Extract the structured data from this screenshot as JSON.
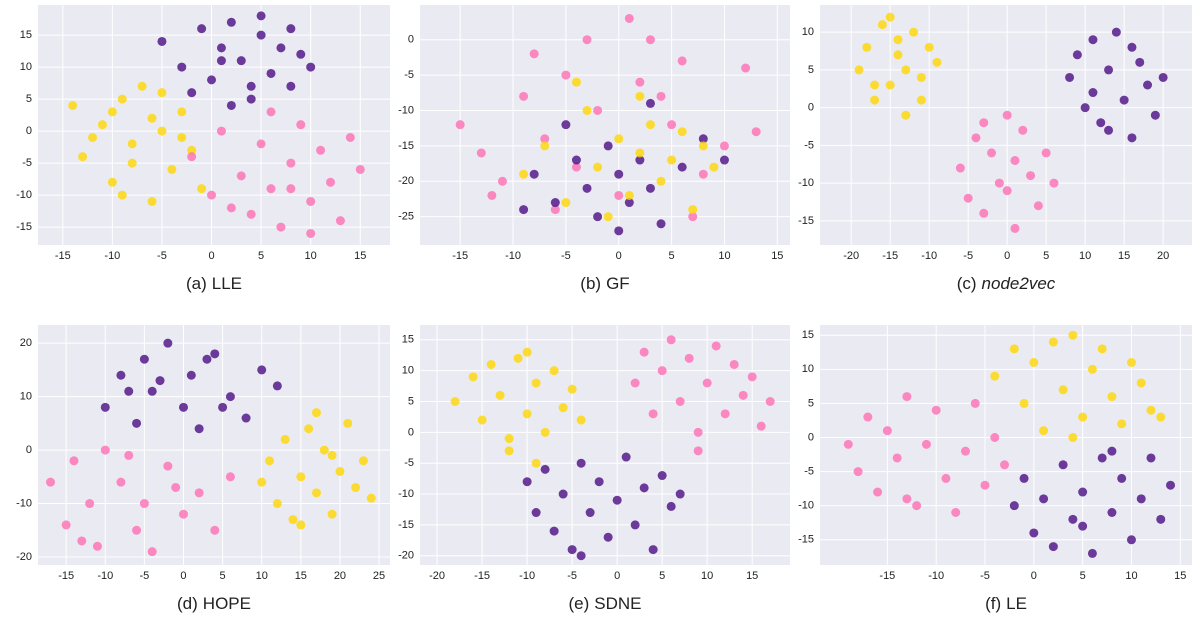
{
  "chart_data": [
    {
      "type": "scatter",
      "panel": "(a)",
      "title": "LLE",
      "title_italic": false,
      "xlim": [
        -17.5,
        18
      ],
      "ylim": [
        -17.8,
        19.7
      ],
      "xticks": [
        -15,
        -10,
        -5,
        0,
        5,
        10,
        15
      ],
      "yticks": [
        -15,
        -10,
        -5,
        0,
        5,
        10,
        15
      ],
      "grid": true,
      "series": [
        {
          "color": "#4b0c82",
          "x": [
            -5,
            -3,
            -1,
            0,
            1,
            2,
            3,
            4,
            5,
            6,
            7,
            8,
            9,
            10,
            -2,
            2,
            5,
            8,
            1,
            4
          ],
          "y": [
            14,
            10,
            16,
            8,
            13,
            17,
            11,
            5,
            15,
            9,
            13,
            7,
            12,
            10,
            6,
            4,
            18,
            16,
            11,
            7
          ]
        },
        {
          "color": "#ffd700",
          "x": [
            -14,
            -13,
            -11,
            -10,
            -9,
            -8,
            -7,
            -6,
            -5,
            -4,
            -3,
            -2,
            -1,
            -12,
            -8,
            -6,
            -3,
            -10,
            -9,
            -5
          ],
          "y": [
            4,
            -4,
            1,
            -8,
            5,
            -2,
            7,
            -11,
            0,
            -6,
            3,
            -3,
            -9,
            -1,
            -5,
            2,
            -1,
            3,
            -10,
            6
          ]
        },
        {
          "color": "#ff6eb4",
          "x": [
            -2,
            0,
            1,
            3,
            4,
            5,
            6,
            7,
            8,
            9,
            10,
            11,
            12,
            13,
            14,
            15,
            2,
            6,
            10,
            8
          ],
          "y": [
            -4,
            -10,
            0,
            -7,
            -13,
            -2,
            -9,
            -15,
            -5,
            1,
            -11,
            -3,
            -8,
            -14,
            -1,
            -6,
            -12,
            3,
            -16,
            -9
          ]
        }
      ]
    },
    {
      "type": "scatter",
      "panel": "(b)",
      "title": "GF",
      "title_italic": false,
      "xlim": [
        -18.8,
        16.2
      ],
      "ylim": [
        -29,
        4.9
      ],
      "xticks": [
        -15,
        -10,
        -5,
        0,
        5,
        10,
        15
      ],
      "yticks": [
        -25,
        -20,
        -15,
        -10,
        -5,
        0
      ],
      "grid": true,
      "series": [
        {
          "color": "#ff6eb4",
          "x": [
            -15,
            -13,
            -11,
            -9,
            -7,
            -5,
            -4,
            -3,
            -2,
            0,
            1,
            2,
            3,
            5,
            6,
            8,
            10,
            12,
            -12,
            -6,
            4,
            7,
            -8,
            13
          ],
          "y": [
            -12,
            -16,
            -20,
            -8,
            -14,
            -5,
            -18,
            0,
            -10,
            -22,
            3,
            -6,
            0,
            -12,
            -3,
            -19,
            -15,
            -4,
            -22,
            -24,
            -8,
            -25,
            -2,
            -13
          ]
        },
        {
          "color": "#4b0c82",
          "x": [
            -8,
            -6,
            -4,
            -3,
            -2,
            -1,
            0,
            1,
            2,
            3,
            4,
            6,
            8,
            -5,
            0,
            3,
            -9,
            10
          ],
          "y": [
            -19,
            -23,
            -17,
            -21,
            -25,
            -15,
            -19,
            -23,
            -17,
            -21,
            -26,
            -18,
            -14,
            -12,
            -27,
            -9,
            -24,
            -17
          ]
        },
        {
          "color": "#ffd700",
          "x": [
            -9,
            -7,
            -5,
            -3,
            -2,
            0,
            1,
            2,
            3,
            4,
            5,
            6,
            7,
            8,
            -4,
            2,
            9,
            -1
          ],
          "y": [
            -19,
            -15,
            -23,
            -10,
            -18,
            -14,
            -22,
            -16,
            -12,
            -20,
            -17,
            -13,
            -24,
            -15,
            -6,
            -8,
            -18,
            -25
          ]
        }
      ]
    },
    {
      "type": "scatter",
      "panel": "(c)",
      "title": "node2vec",
      "title_italic": true,
      "xlim": [
        -24,
        23.7
      ],
      "ylim": [
        -18.2,
        13.6
      ],
      "xticks": [
        -20,
        -15,
        -10,
        -5,
        0,
        5,
        10,
        15,
        20
      ],
      "yticks": [
        -15,
        -10,
        -5,
        0,
        5,
        10
      ],
      "grid": true,
      "series": [
        {
          "color": "#ffd700",
          "x": [
            -19,
            -18,
            -17,
            -16,
            -15,
            -14,
            -13,
            -12,
            -11,
            -10,
            -9,
            -15,
            -13,
            -17,
            -11,
            -14
          ],
          "y": [
            5,
            8,
            1,
            11,
            3,
            7,
            -1,
            10,
            4,
            8,
            6,
            12,
            5,
            3,
            1,
            9
          ]
        },
        {
          "color": "#4b0c82",
          "x": [
            8,
            9,
            10,
            11,
            12,
            13,
            14,
            15,
            16,
            17,
            18,
            19,
            20,
            13,
            16,
            11
          ],
          "y": [
            4,
            7,
            0,
            9,
            -2,
            5,
            10,
            1,
            -4,
            6,
            3,
            -1,
            4,
            -3,
            8,
            2
          ]
        },
        {
          "color": "#ff6eb4",
          "x": [
            -6,
            -5,
            -4,
            -3,
            -2,
            -1,
            0,
            1,
            2,
            3,
            4,
            5,
            6,
            -3,
            1,
            0
          ],
          "y": [
            -8,
            -12,
            -4,
            -14,
            -6,
            -10,
            -1,
            -16,
            -3,
            -9,
            -13,
            -6,
            -10,
            -2,
            -7,
            -11
          ]
        }
      ]
    },
    {
      "type": "scatter",
      "panel": "(d)",
      "title": "HOPE",
      "title_italic": false,
      "xlim": [
        -18.6,
        26.4
      ],
      "ylim": [
        -21.5,
        23.4
      ],
      "xticks": [
        -15,
        -10,
        -5,
        0,
        5,
        10,
        15,
        20,
        25
      ],
      "yticks": [
        -20,
        -10,
        0,
        10,
        20
      ],
      "grid": true,
      "series": [
        {
          "color": "#4b0c82",
          "x": [
            -10,
            -8,
            -6,
            -5,
            -4,
            -2,
            0,
            1,
            2,
            4,
            6,
            8,
            10,
            12,
            -3,
            3,
            -7,
            5
          ],
          "y": [
            8,
            14,
            5,
            17,
            11,
            20,
            8,
            14,
            4,
            18,
            10,
            6,
            15,
            12,
            13,
            17,
            11,
            8
          ]
        },
        {
          "color": "#ff6eb4",
          "x": [
            -17,
            -15,
            -14,
            -12,
            -11,
            -10,
            -8,
            -6,
            -5,
            -4,
            -2,
            0,
            2,
            4,
            6,
            -13,
            -7,
            -1
          ],
          "y": [
            -6,
            -14,
            -2,
            -10,
            -18,
            0,
            -6,
            -15,
            -10,
            -19,
            -3,
            -12,
            -8,
            -15,
            -5,
            -17,
            -1,
            -7
          ]
        },
        {
          "color": "#ffd700",
          "x": [
            10,
            11,
            12,
            13,
            14,
            15,
            16,
            17,
            18,
            19,
            20,
            21,
            22,
            23,
            24,
            17,
            15,
            19
          ],
          "y": [
            -6,
            -2,
            -10,
            2,
            -13,
            -5,
            4,
            -8,
            0,
            -12,
            -4,
            5,
            -7,
            -2,
            -9,
            7,
            -14,
            -1
          ]
        }
      ]
    },
    {
      "type": "scatter",
      "panel": "(e)",
      "title": "SDNE",
      "title_italic": false,
      "xlim": [
        -21.9,
        19.2
      ],
      "ylim": [
        -21.5,
        17.4
      ],
      "xticks": [
        -20,
        -15,
        -10,
        -5,
        0,
        5,
        10,
        15
      ],
      "yticks": [
        -20,
        -15,
        -10,
        -5,
        0,
        5,
        10,
        15
      ],
      "grid": true,
      "series": [
        {
          "color": "#ffd700",
          "x": [
            -18,
            -16,
            -15,
            -14,
            -13,
            -12,
            -11,
            -10,
            -9,
            -8,
            -7,
            -6,
            -5,
            -4,
            -12,
            -9,
            -10
          ],
          "y": [
            5,
            9,
            2,
            11,
            6,
            -1,
            12,
            3,
            8,
            0,
            10,
            4,
            7,
            2,
            -3,
            -5,
            13
          ]
        },
        {
          "color": "#ff6eb4",
          "x": [
            2,
            3,
            4,
            5,
            6,
            7,
            8,
            9,
            10,
            11,
            12,
            13,
            14,
            15,
            16,
            17,
            9
          ],
          "y": [
            8,
            13,
            3,
            10,
            15,
            5,
            12,
            0,
            8,
            14,
            3,
            11,
            6,
            9,
            1,
            5,
            -3
          ]
        },
        {
          "color": "#4b0c82",
          "x": [
            -10,
            -9,
            -8,
            -7,
            -6,
            -5,
            -4,
            -3,
            -2,
            -1,
            0,
            1,
            2,
            3,
            4,
            5,
            6,
            7,
            -4
          ],
          "y": [
            -8,
            -13,
            -6,
            -16,
            -10,
            -19,
            -5,
            -13,
            -8,
            -17,
            -11,
            -4,
            -15,
            -9,
            -19,
            -7,
            -12,
            -10,
            -20
          ]
        }
      ]
    },
    {
      "type": "scatter",
      "panel": "(f)",
      "title": "LE",
      "title_italic": false,
      "xlim": [
        -21.9,
        16.2
      ],
      "ylim": [
        -18.7,
        16.5
      ],
      "xticks": [
        -15,
        -10,
        -5,
        0,
        5,
        10,
        15
      ],
      "yticks": [
        -15,
        -10,
        -5,
        0,
        5,
        10,
        15
      ],
      "grid": true,
      "series": [
        {
          "color": "#ffd700",
          "x": [
            -4,
            -2,
            -1,
            0,
            1,
            2,
            3,
            4,
            5,
            6,
            7,
            8,
            9,
            10,
            11,
            12,
            13,
            4
          ],
          "y": [
            9,
            13,
            5,
            11,
            1,
            14,
            7,
            15,
            3,
            10,
            13,
            6,
            2,
            11,
            8,
            4,
            3,
            0
          ]
        },
        {
          "color": "#ff6eb4",
          "x": [
            -19,
            -18,
            -17,
            -16,
            -15,
            -14,
            -13,
            -12,
            -11,
            -10,
            -9,
            -8,
            -7,
            -6,
            -5,
            -4,
            -3,
            -13
          ],
          "y": [
            -1,
            -5,
            3,
            -8,
            1,
            -3,
            6,
            -10,
            -1,
            4,
            -6,
            -11,
            -2,
            5,
            -7,
            0,
            -4,
            -9
          ]
        },
        {
          "color": "#4b0c82",
          "x": [
            -2,
            -1,
            0,
            1,
            2,
            3,
            4,
            5,
            6,
            7,
            8,
            9,
            10,
            11,
            12,
            13,
            14,
            5,
            8
          ],
          "y": [
            -10,
            -6,
            -14,
            -9,
            -16,
            -4,
            -12,
            -8,
            -17,
            -3,
            -11,
            -6,
            -15,
            -9,
            -3,
            -12,
            -7,
            -13,
            -2
          ]
        }
      ]
    }
  ]
}
